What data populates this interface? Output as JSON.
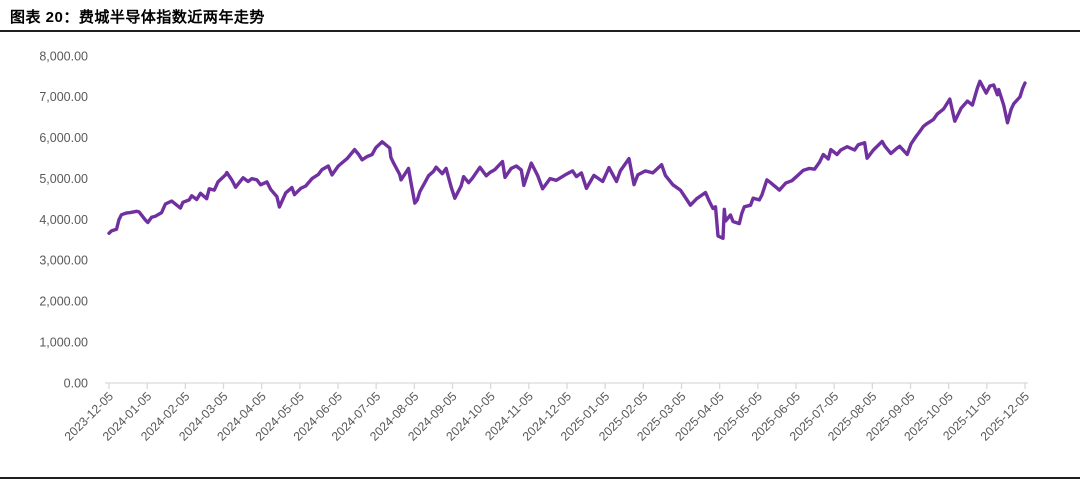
{
  "chart_data": {
    "type": "line",
    "title": "图表 20：费城半导体指数近两年走势",
    "legend_position": "none",
    "grid": "off",
    "colors": {
      "line": "#7030A0",
      "axis": "#D9D9D9",
      "tick_label": "#595959",
      "divider": "#1F1F1F",
      "background": "#FFFFFF"
    },
    "y_axis": {
      "min": 0,
      "max": 8000,
      "step": 1000,
      "labels": [
        "0.00",
        "1,000.00",
        "2,000.00",
        "3,000.00",
        "4,000.00",
        "5,000.00",
        "6,000.00",
        "7,000.00",
        "8,000.00"
      ]
    },
    "x_axis": {
      "labels": [
        "2023-12-05",
        "2024-01-05",
        "2024-02-05",
        "2024-03-05",
        "2024-04-05",
        "2024-05-05",
        "2024-06-05",
        "2024-07-05",
        "2024-08-05",
        "2024-09-05",
        "2024-10-05",
        "2024-11-05",
        "2024-12-05",
        "2025-01-05",
        "2025-02-05",
        "2025-03-05",
        "2025-04-05",
        "2025-05-05",
        "2025-06-05",
        "2025-07-05",
        "2025-08-05",
        "2025-09-05",
        "2025-10-05",
        "2025-11-05",
        "2025-12-05"
      ]
    },
    "series": [
      {
        "name": "费城半导体指数",
        "points": [
          [
            "2023-12-05",
            3666
          ],
          [
            "2023-12-07",
            3720
          ],
          [
            "2023-12-11",
            3760
          ],
          [
            "2023-12-13",
            4000
          ],
          [
            "2023-12-15",
            4117
          ],
          [
            "2023-12-19",
            4160
          ],
          [
            "2023-12-22",
            4170
          ],
          [
            "2023-12-27",
            4200
          ],
          [
            "2023-12-29",
            4186
          ],
          [
            "2024-01-03",
            3990
          ],
          [
            "2024-01-05",
            3926
          ],
          [
            "2024-01-08",
            4053
          ],
          [
            "2024-01-11",
            4080
          ],
          [
            "2024-01-16",
            4170
          ],
          [
            "2024-01-19",
            4380
          ],
          [
            "2024-01-24",
            4450
          ],
          [
            "2024-01-26",
            4400
          ],
          [
            "2024-01-31",
            4278
          ],
          [
            "2024-02-02",
            4420
          ],
          [
            "2024-02-07",
            4480
          ],
          [
            "2024-02-09",
            4580
          ],
          [
            "2024-02-13",
            4490
          ],
          [
            "2024-02-16",
            4640
          ],
          [
            "2024-02-21",
            4510
          ],
          [
            "2024-02-23",
            4750
          ],
          [
            "2024-02-27",
            4720
          ],
          [
            "2024-03-01",
            4920
          ],
          [
            "2024-03-07",
            5090
          ],
          [
            "2024-03-08",
            5150
          ],
          [
            "2024-03-12",
            4970
          ],
          [
            "2024-03-15",
            4790
          ],
          [
            "2024-03-21",
            5020
          ],
          [
            "2024-03-25",
            4930
          ],
          [
            "2024-03-28",
            5000
          ],
          [
            "2024-04-01",
            4970
          ],
          [
            "2024-04-04",
            4850
          ],
          [
            "2024-04-09",
            4920
          ],
          [
            "2024-04-12",
            4740
          ],
          [
            "2024-04-17",
            4560
          ],
          [
            "2024-04-19",
            4306
          ],
          [
            "2024-04-24",
            4650
          ],
          [
            "2024-04-29",
            4780
          ],
          [
            "2024-05-01",
            4610
          ],
          [
            "2024-05-06",
            4760
          ],
          [
            "2024-05-10",
            4820
          ],
          [
            "2024-05-15",
            5000
          ],
          [
            "2024-05-20",
            5100
          ],
          [
            "2024-05-23",
            5220
          ],
          [
            "2024-05-28",
            5310
          ],
          [
            "2024-05-31",
            5090
          ],
          [
            "2024-06-05",
            5310
          ],
          [
            "2024-06-12",
            5490
          ],
          [
            "2024-06-18",
            5710
          ],
          [
            "2024-06-21",
            5600
          ],
          [
            "2024-06-24",
            5460
          ],
          [
            "2024-06-28",
            5540
          ],
          [
            "2024-07-02",
            5590
          ],
          [
            "2024-07-05",
            5760
          ],
          [
            "2024-07-10",
            5900
          ],
          [
            "2024-07-16",
            5750
          ],
          [
            "2024-07-17",
            5520
          ],
          [
            "2024-07-19",
            5390
          ],
          [
            "2024-07-24",
            5100
          ],
          [
            "2024-07-25",
            4970
          ],
          [
            "2024-07-31",
            5250
          ],
          [
            "2024-08-02",
            4900
          ],
          [
            "2024-08-05",
            4400
          ],
          [
            "2024-08-07",
            4480
          ],
          [
            "2024-08-09",
            4680
          ],
          [
            "2024-08-13",
            4900
          ],
          [
            "2024-08-16",
            5070
          ],
          [
            "2024-08-20",
            5180
          ],
          [
            "2024-08-22",
            5280
          ],
          [
            "2024-08-27",
            5120
          ],
          [
            "2024-08-30",
            5250
          ],
          [
            "2024-09-03",
            4800
          ],
          [
            "2024-09-06",
            4520
          ],
          [
            "2024-09-11",
            4820
          ],
          [
            "2024-09-13",
            5050
          ],
          [
            "2024-09-17",
            4900
          ],
          [
            "2024-09-20",
            5010
          ],
          [
            "2024-09-26",
            5277
          ],
          [
            "2024-10-01",
            5070
          ],
          [
            "2024-10-04",
            5150
          ],
          [
            "2024-10-08",
            5220
          ],
          [
            "2024-10-14",
            5420
          ],
          [
            "2024-10-16",
            5030
          ],
          [
            "2024-10-21",
            5250
          ],
          [
            "2024-10-25",
            5310
          ],
          [
            "2024-10-29",
            5210
          ],
          [
            "2024-10-31",
            4835
          ],
          [
            "2024-11-06",
            5380
          ],
          [
            "2024-11-11",
            5080
          ],
          [
            "2024-11-15",
            4750
          ],
          [
            "2024-11-21",
            5000
          ],
          [
            "2024-11-26",
            4960
          ],
          [
            "2024-12-03",
            5090
          ],
          [
            "2024-12-09",
            5190
          ],
          [
            "2024-12-12",
            5050
          ],
          [
            "2024-12-16",
            5140
          ],
          [
            "2024-12-20",
            4760
          ],
          [
            "2024-12-26",
            5080
          ],
          [
            "2025-01-02",
            4930
          ],
          [
            "2025-01-07",
            5270
          ],
          [
            "2025-01-13",
            4930
          ],
          [
            "2025-01-16",
            5190
          ],
          [
            "2025-01-23",
            5490
          ],
          [
            "2025-01-27",
            4853
          ],
          [
            "2025-01-30",
            5090
          ],
          [
            "2025-02-05",
            5190
          ],
          [
            "2025-02-11",
            5140
          ],
          [
            "2025-02-18",
            5340
          ],
          [
            "2025-02-21",
            5080
          ],
          [
            "2025-02-27",
            4850
          ],
          [
            "2025-03-05",
            4720
          ],
          [
            "2025-03-10",
            4490
          ],
          [
            "2025-03-13",
            4350
          ],
          [
            "2025-03-18",
            4510
          ],
          [
            "2025-03-25",
            4660
          ],
          [
            "2025-03-28",
            4450
          ],
          [
            "2025-03-31",
            4270
          ],
          [
            "2025-04-02",
            4310
          ],
          [
            "2025-04-04",
            3597
          ],
          [
            "2025-04-08",
            3540
          ],
          [
            "2025-04-09",
            4250
          ],
          [
            "2025-04-10",
            3960
          ],
          [
            "2025-04-14",
            4110
          ],
          [
            "2025-04-16",
            3950
          ],
          [
            "2025-04-21",
            3900
          ],
          [
            "2025-04-23",
            4150
          ],
          [
            "2025-04-25",
            4310
          ],
          [
            "2025-04-30",
            4350
          ],
          [
            "2025-05-02",
            4520
          ],
          [
            "2025-05-07",
            4480
          ],
          [
            "2025-05-09",
            4600
          ],
          [
            "2025-05-13",
            4970
          ],
          [
            "2025-05-16",
            4900
          ],
          [
            "2025-05-23",
            4720
          ],
          [
            "2025-05-28",
            4890
          ],
          [
            "2025-06-02",
            4950
          ],
          [
            "2025-06-06",
            5060
          ],
          [
            "2025-06-11",
            5200
          ],
          [
            "2025-06-16",
            5250
          ],
          [
            "2025-06-20",
            5230
          ],
          [
            "2025-06-24",
            5400
          ],
          [
            "2025-06-27",
            5590
          ],
          [
            "2025-07-01",
            5480
          ],
          [
            "2025-07-03",
            5710
          ],
          [
            "2025-07-08",
            5590
          ],
          [
            "2025-07-11",
            5700
          ],
          [
            "2025-07-16",
            5780
          ],
          [
            "2025-07-22",
            5700
          ],
          [
            "2025-07-25",
            5830
          ],
          [
            "2025-07-30",
            5880
          ],
          [
            "2025-08-01",
            5500
          ],
          [
            "2025-08-06",
            5700
          ],
          [
            "2025-08-13",
            5910
          ],
          [
            "2025-08-15",
            5800
          ],
          [
            "2025-08-20",
            5615
          ],
          [
            "2025-08-25",
            5750
          ],
          [
            "2025-08-27",
            5790
          ],
          [
            "2025-09-02",
            5590
          ],
          [
            "2025-09-05",
            5850
          ],
          [
            "2025-09-09",
            6030
          ],
          [
            "2025-09-12",
            6150
          ],
          [
            "2025-09-15",
            6280
          ],
          [
            "2025-09-18",
            6350
          ],
          [
            "2025-09-23",
            6450
          ],
          [
            "2025-09-26",
            6580
          ],
          [
            "2025-10-01",
            6700
          ],
          [
            "2025-10-06",
            6945
          ],
          [
            "2025-10-10",
            6404
          ],
          [
            "2025-10-15",
            6724
          ],
          [
            "2025-10-20",
            6896
          ],
          [
            "2025-10-24",
            6800
          ],
          [
            "2025-10-28",
            7217
          ],
          [
            "2025-10-30",
            7380
          ],
          [
            "2025-11-04",
            7093
          ],
          [
            "2025-11-07",
            7266
          ],
          [
            "2025-11-10",
            7290
          ],
          [
            "2025-11-13",
            7050
          ],
          [
            "2025-11-14",
            7180
          ],
          [
            "2025-11-18",
            6800
          ],
          [
            "2025-11-21",
            6365
          ],
          [
            "2025-11-24",
            6700
          ],
          [
            "2025-11-26",
            6830
          ],
          [
            "2025-12-01",
            7000
          ],
          [
            "2025-12-03",
            7200
          ],
          [
            "2025-12-05",
            7340
          ]
        ]
      }
    ]
  }
}
